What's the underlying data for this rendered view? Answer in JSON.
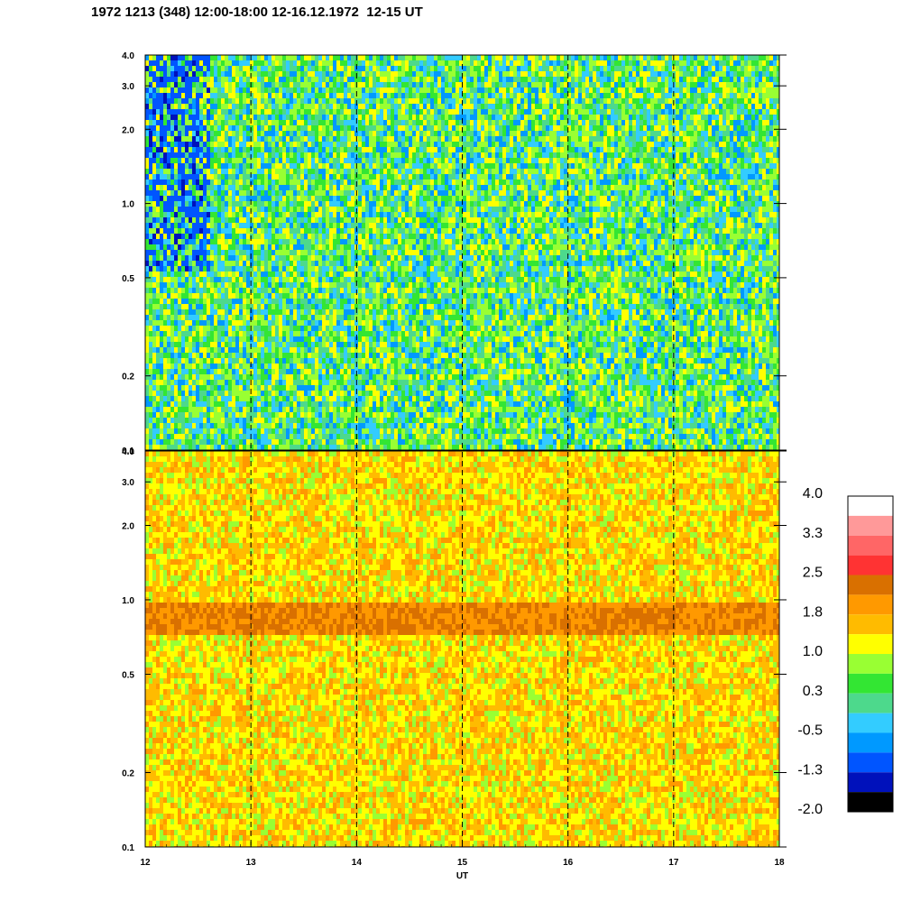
{
  "title": "1972 1213 (348) 12:00-18:00 12-16.12.1972  12-15 UT",
  "chart_data": [
    {
      "type": "heatmap",
      "panel": "upper",
      "x_range": [
        12,
        18
      ],
      "y_range": [
        0.1,
        4.0
      ],
      "y_scale": "log",
      "y_ticks": [
        "4.0",
        "3.0",
        "2.0",
        "1.0",
        "0.5",
        "0.2",
        "0.1"
      ],
      "y_tick_values": [
        4.0,
        3.0,
        2.0,
        1.0,
        0.5,
        0.2,
        0.1
      ],
      "dominant_levels": [
        0.3,
        -0.5,
        1.0
      ],
      "hour_markers": [
        13,
        14,
        15,
        16,
        17
      ]
    },
    {
      "type": "heatmap",
      "panel": "lower",
      "x_range": [
        12,
        18
      ],
      "y_range": [
        0.1,
        4.0
      ],
      "y_scale": "log",
      "y_ticks": [
        "4.0",
        "3.0",
        "2.0",
        "1.0",
        "0.5",
        "0.2",
        "0.1"
      ],
      "y_tick_values": [
        4.0,
        3.0,
        2.0,
        1.0,
        0.5,
        0.2,
        0.1
      ],
      "dominant_levels": [
        1.8,
        1.4,
        1.0
      ],
      "band": {
        "y_from": 0.72,
        "y_to": 0.98,
        "level": 2.2
      },
      "hour_markers": [
        13,
        14,
        15,
        16,
        17
      ]
    }
  ],
  "xaxis": {
    "ticks": [
      "12",
      "13",
      "14",
      "15",
      "16",
      "17",
      "18"
    ],
    "values": [
      12,
      13,
      14,
      15,
      16,
      17,
      18
    ],
    "label": "UT"
  },
  "colorbar": {
    "labels": [
      "4.0",
      "3.3",
      "2.5",
      "1.8",
      "1.0",
      "0.3",
      "-0.5",
      "-1.3",
      "-2.0"
    ],
    "colors": [
      "#ffffff",
      "#ff9999",
      "#ff6666",
      "#ff3333",
      "#d97000",
      "#ff9900",
      "#ffbb00",
      "#ffff00",
      "#99ff33",
      "#33e633",
      "#4dd98c",
      "#33ccff",
      "#0099ff",
      "#0055ff",
      "#0011bb",
      "#000000"
    ]
  }
}
